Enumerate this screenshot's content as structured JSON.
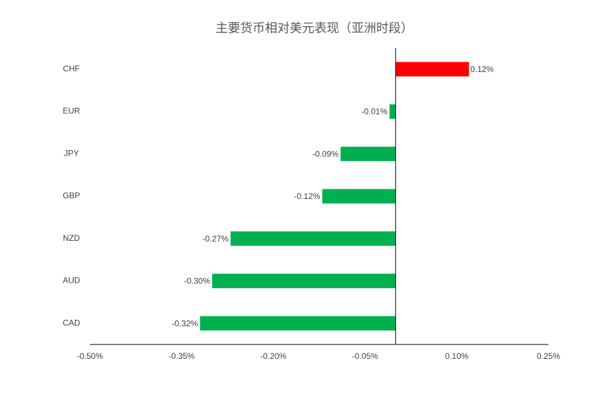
{
  "chart_data": {
    "type": "hbar",
    "title": "主要货币相对美元表现（亚洲时段）",
    "categories": [
      "CHF",
      "EUR",
      "JPY",
      "GBP",
      "NZD",
      "AUD",
      "CAD"
    ],
    "values": [
      0.12,
      -0.01,
      -0.09,
      -0.12,
      -0.27,
      -0.3,
      -0.32
    ],
    "value_labels": [
      "0.12%",
      "-0.01%",
      "-0.09%",
      "-0.12%",
      "-0.27%",
      "-0.30%",
      "-0.32%"
    ],
    "colors": [
      "#ff0000",
      "#00b050",
      "#00b050",
      "#00b050",
      "#00b050",
      "#00b050",
      "#00b050"
    ],
    "xlim": [
      -0.5,
      0.25
    ],
    "xticks": [
      {
        "value": -0.5,
        "label": "-0.50%"
      },
      {
        "value": -0.35,
        "label": "-0.35%"
      },
      {
        "value": -0.2,
        "label": "-0.20%"
      },
      {
        "value": -0.05,
        "label": "-0.05%"
      },
      {
        "value": 0.1,
        "label": "0.10%"
      },
      {
        "value": 0.25,
        "label": "0.25%"
      }
    ],
    "grid": false
  }
}
